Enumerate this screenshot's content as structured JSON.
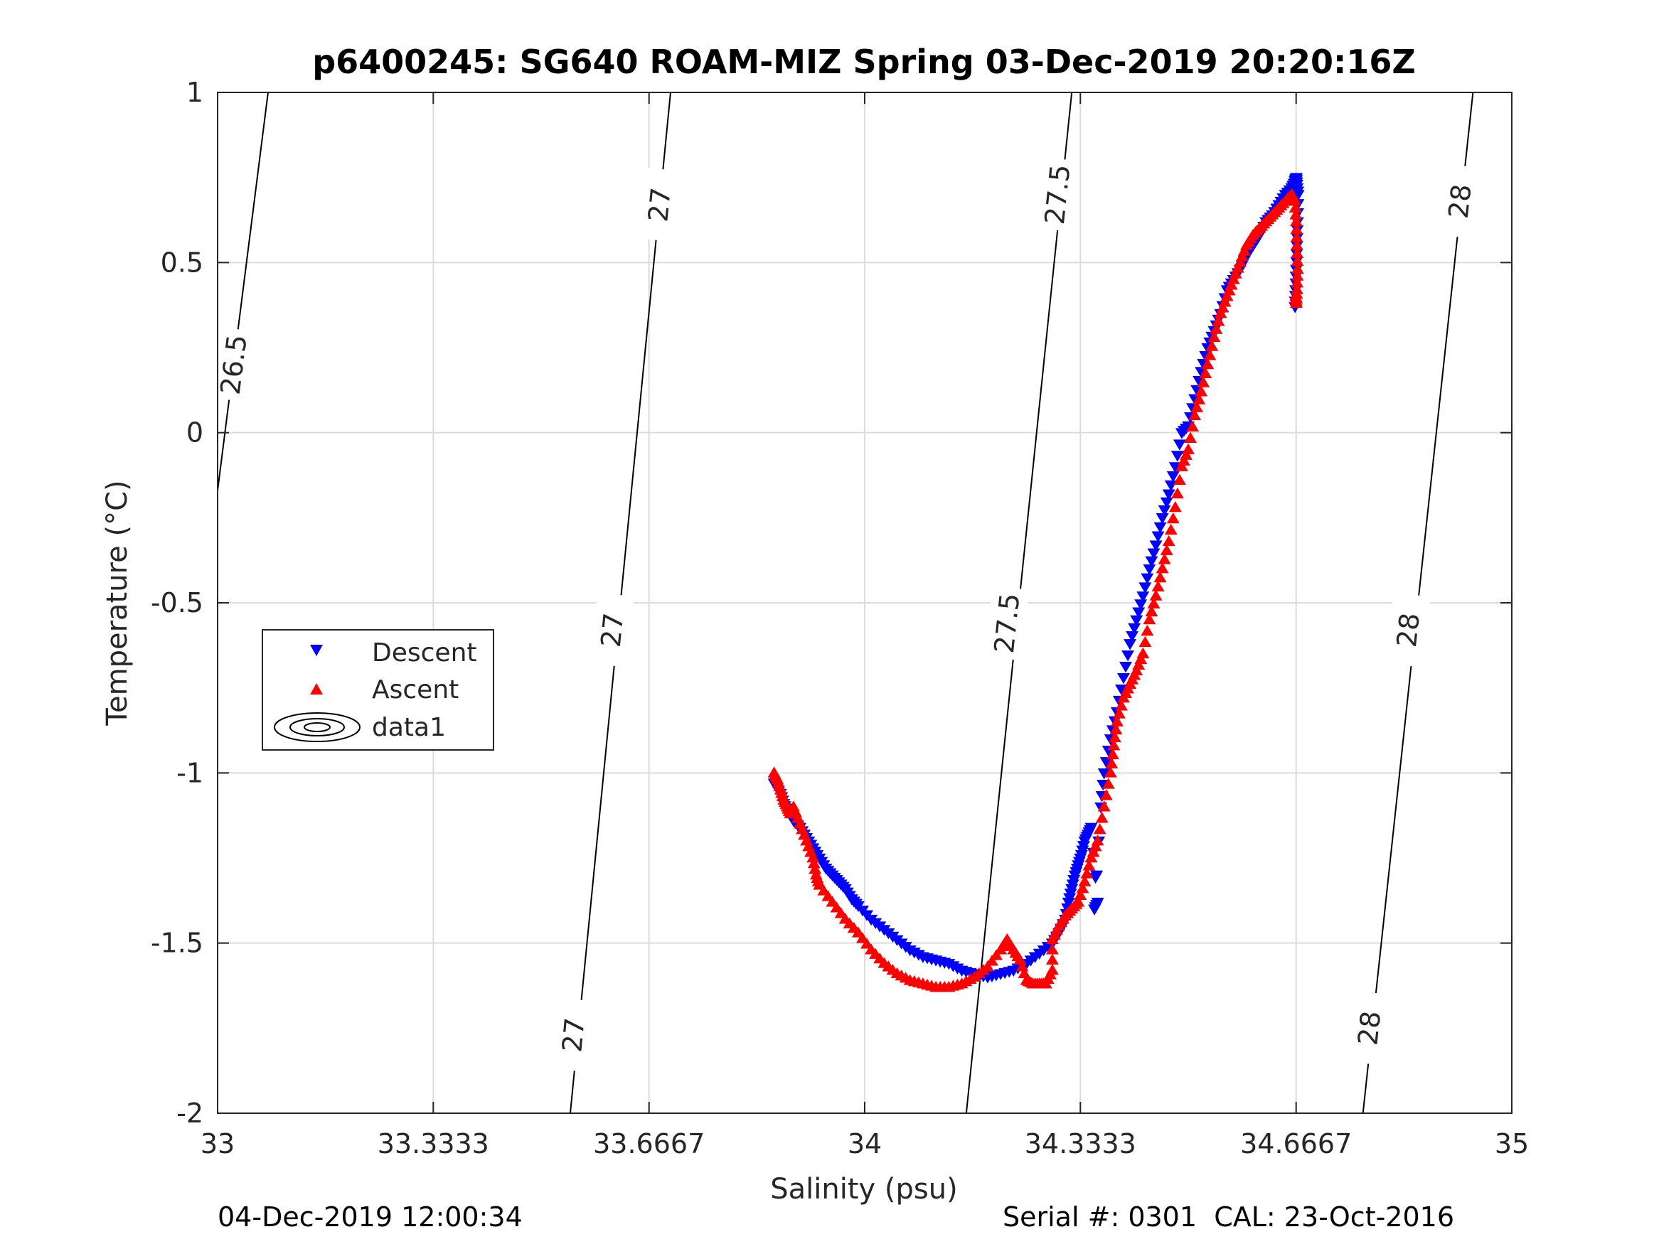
{
  "chart_data": {
    "type": "scatter",
    "title": "p6400245: SG640 ROAM-MIZ Spring 03-Dec-2019 20:20:16Z",
    "xlabel": "Salinity (psu)",
    "ylabel": "Temperature (°C)",
    "xlim": [
      33,
      35
    ],
    "ylim": [
      -2,
      1
    ],
    "xticks": [
      33,
      33.3333,
      33.6667,
      34,
      34.3333,
      34.6667,
      35
    ],
    "xtick_labels": [
      "33",
      "33.3333",
      "33.6667",
      "34",
      "34.3333",
      "34.6667",
      "35"
    ],
    "yticks": [
      -2,
      -1.5,
      -1,
      -0.5,
      0,
      0.5,
      1
    ],
    "ytick_labels": [
      "-2",
      "-1.5",
      "-1",
      "-0.5",
      "0",
      "0.5",
      "1"
    ],
    "grid": true,
    "legend_position": "middle-left",
    "legend": [
      "Descent",
      "Ascent",
      "data1"
    ],
    "density_contours": [
      {
        "label": "26.5",
        "points": [
          [
            33.0,
            -0.17
          ],
          [
            33.078,
            1.0
          ]
        ],
        "label_at": [
          33.025,
          0.2
        ]
      },
      {
        "label": "27",
        "points": [
          [
            33.545,
            -2.0
          ],
          [
            33.7,
            1.0
          ]
        ],
        "label_at": [
          33.55,
          -1.77
        ],
        "label_at2": [
          33.61,
          -0.58
        ],
        "label_at3": [
          33.683,
          0.67
        ]
      },
      {
        "label": "27.5",
        "points": [
          [
            34.157,
            -2.0
          ],
          [
            34.32,
            1.0
          ]
        ],
        "label_at": [
          34.22,
          -0.56
        ],
        "label_at2": [
          34.298,
          0.7
        ]
      },
      {
        "label": "28",
        "points": [
          [
            34.77,
            -2.0
          ],
          [
            34.94,
            1.0
          ]
        ],
        "label_at": [
          34.78,
          -1.75
        ],
        "label_at2": [
          34.84,
          -0.58
        ],
        "label_at3": [
          34.92,
          0.68
        ]
      }
    ],
    "series": [
      {
        "name": "Descent",
        "color": "#0000ff",
        "marker": "triangle-down",
        "x": [
          33.86,
          33.87,
          33.875,
          33.88,
          33.89,
          33.9,
          33.91,
          33.92,
          33.93,
          33.94,
          33.95,
          33.96,
          33.97,
          33.98,
          33.99,
          34.01,
          34.03,
          34.05,
          34.07,
          34.09,
          34.11,
          34.13,
          34.15,
          34.17,
          34.19,
          34.21,
          34.23,
          34.25,
          34.27,
          34.29,
          34.3,
          34.31,
          34.315,
          34.32,
          34.325,
          34.33,
          34.335,
          34.34,
          34.345,
          34.35,
          34.36,
          34.355,
          34.365,
          34.37,
          34.38,
          34.39,
          34.4,
          34.41,
          34.42,
          34.43,
          34.44,
          34.45,
          34.46,
          34.47,
          34.48,
          34.49,
          34.5,
          34.51,
          34.52,
          34.53,
          34.54,
          34.55,
          34.56,
          34.57,
          34.58,
          34.59,
          34.6,
          34.61,
          34.62,
          34.63,
          34.64,
          34.65,
          34.66,
          34.665,
          34.667,
          34.668,
          34.67,
          34.669,
          34.668,
          34.667,
          34.666,
          34.665
        ],
        "y": [
          -1.03,
          -1.06,
          -1.09,
          -1.11,
          -1.14,
          -1.16,
          -1.19,
          -1.22,
          -1.25,
          -1.28,
          -1.3,
          -1.32,
          -1.34,
          -1.37,
          -1.39,
          -1.43,
          -1.46,
          -1.49,
          -1.52,
          -1.54,
          -1.55,
          -1.56,
          -1.58,
          -1.59,
          -1.6,
          -1.59,
          -1.58,
          -1.56,
          -1.53,
          -1.5,
          -1.47,
          -1.43,
          -1.38,
          -1.34,
          -1.3,
          -1.27,
          -1.24,
          -1.2,
          -1.18,
          -1.16,
          -1.38,
          -1.4,
          -1.1,
          -1.0,
          -0.9,
          -0.82,
          -0.72,
          -0.62,
          -0.55,
          -0.48,
          -0.4,
          -0.33,
          -0.25,
          -0.18,
          -0.1,
          0.0,
          0.02,
          0.1,
          0.18,
          0.25,
          0.3,
          0.35,
          0.42,
          0.45,
          0.48,
          0.52,
          0.55,
          0.58,
          0.62,
          0.64,
          0.67,
          0.7,
          0.72,
          0.74,
          0.75,
          0.73,
          0.7,
          0.62,
          0.55,
          0.48,
          0.42,
          0.37
        ]
      },
      {
        "name": "Ascent",
        "color": "#ff0000",
        "marker": "triangle-up",
        "x": [
          33.86,
          33.865,
          33.87,
          33.875,
          33.88,
          33.885,
          33.89,
          33.9,
          33.91,
          33.92,
          33.925,
          33.93,
          33.95,
          33.97,
          33.99,
          34.01,
          34.03,
          34.05,
          34.07,
          34.09,
          34.11,
          34.13,
          34.15,
          34.17,
          34.19,
          34.21,
          34.22,
          34.23,
          34.24,
          34.25,
          34.26,
          34.27,
          34.28,
          34.29,
          34.29,
          34.3,
          34.31,
          34.32,
          34.33,
          34.34,
          34.35,
          34.36,
          34.37,
          34.38,
          34.385,
          34.39,
          34.4,
          34.41,
          34.42,
          34.43,
          34.44,
          34.45,
          34.46,
          34.47,
          34.48,
          34.49,
          34.5,
          34.51,
          34.52,
          34.53,
          34.54,
          34.55,
          34.56,
          34.57,
          34.58,
          34.59,
          34.6,
          34.61,
          34.62,
          34.63,
          34.64,
          34.65,
          34.66,
          34.665,
          34.667,
          34.668,
          34.669,
          34.668,
          34.667,
          34.666
        ],
        "y": [
          -1.0,
          -1.02,
          -1.05,
          -1.08,
          -1.1,
          -1.12,
          -1.1,
          -1.15,
          -1.2,
          -1.25,
          -1.3,
          -1.33,
          -1.38,
          -1.43,
          -1.47,
          -1.52,
          -1.56,
          -1.59,
          -1.61,
          -1.62,
          -1.63,
          -1.63,
          -1.62,
          -1.6,
          -1.57,
          -1.52,
          -1.49,
          -1.52,
          -1.55,
          -1.61,
          -1.62,
          -1.62,
          -1.62,
          -1.58,
          -1.49,
          -1.45,
          -1.42,
          -1.4,
          -1.38,
          -1.32,
          -1.25,
          -1.2,
          -1.1,
          -1.0,
          -0.92,
          -0.85,
          -0.78,
          -0.74,
          -0.7,
          -0.65,
          -0.55,
          -0.48,
          -0.4,
          -0.32,
          -0.22,
          -0.1,
          -0.05,
          0.05,
          0.12,
          0.2,
          0.28,
          0.35,
          0.4,
          0.45,
          0.5,
          0.55,
          0.58,
          0.6,
          0.62,
          0.64,
          0.66,
          0.68,
          0.7,
          0.68,
          0.62,
          0.55,
          0.48,
          0.42,
          0.38,
          0.4
        ]
      }
    ]
  },
  "footer": {
    "left": "04-Dec-2019 12:00:34",
    "right": "Serial #: 0301  CAL: 23-Oct-2016"
  }
}
